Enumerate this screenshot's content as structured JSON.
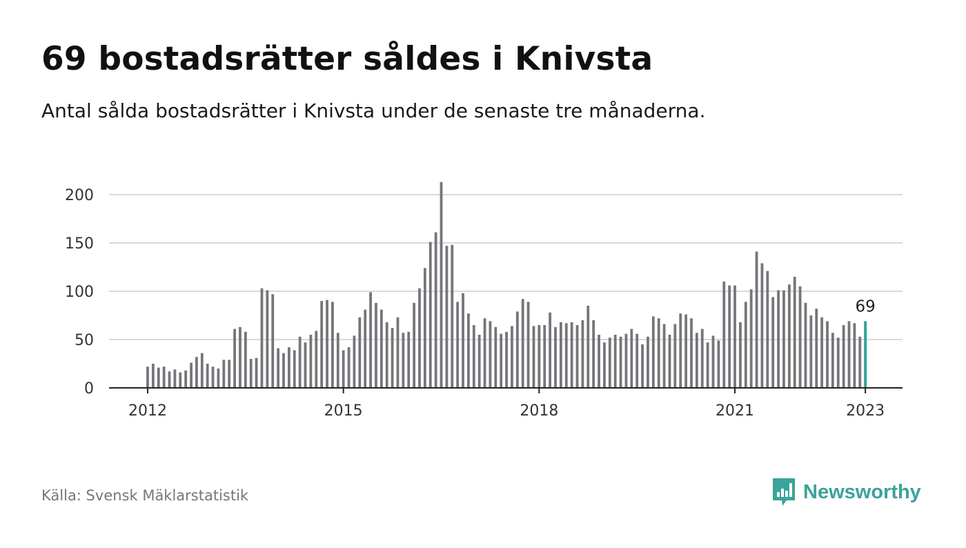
{
  "title": "69 bostadsrätter såldes i Knivsta",
  "subtitle": "Antal sålda bostadsrätter i Knivsta under de senaste tre månaderna.",
  "source": "Källa: Svensk Mäklarstatistik",
  "brand": {
    "name": "Newsworthy",
    "logo_icon": "newsworthy-logo-icon",
    "color": "#3aa39a"
  },
  "colors": {
    "bar": "#75757a",
    "highlight": "#2ea59a",
    "grid": "#d9d9d9",
    "axis": "#222222"
  },
  "chart_data": {
    "type": "bar",
    "x_start": "2012-01",
    "x_step": "month",
    "values": [
      22,
      25,
      21,
      22,
      17,
      19,
      16,
      18,
      26,
      32,
      36,
      25,
      22,
      20,
      29,
      29,
      61,
      63,
      58,
      30,
      31,
      103,
      101,
      97,
      41,
      36,
      42,
      39,
      53,
      47,
      55,
      59,
      90,
      91,
      89,
      57,
      39,
      42,
      54,
      73,
      81,
      99,
      88,
      81,
      68,
      62,
      73,
      57,
      58,
      88,
      103,
      124,
      151,
      161,
      213,
      147,
      148,
      89,
      98,
      77,
      65,
      55,
      72,
      69,
      63,
      56,
      58,
      64,
      79,
      92,
      89,
      64,
      65,
      65,
      78,
      63,
      68,
      67,
      68,
      65,
      70,
      85,
      70,
      55,
      47,
      52,
      55,
      53,
      56,
      61,
      56,
      45,
      53,
      74,
      72,
      66,
      55,
      66,
      77,
      76,
      72,
      57,
      61,
      47,
      54,
      49,
      110,
      106,
      106,
      68,
      89,
      102,
      141,
      129,
      121,
      94,
      101,
      101,
      107,
      115,
      105,
      88,
      75,
      82,
      73,
      69,
      57,
      52,
      65,
      69,
      67,
      53,
      69
    ],
    "x_ticks": [
      "2012",
      "2015",
      "2018",
      "2021",
      "2023"
    ],
    "x_tick_dates": [
      "2012-01",
      "2015-01",
      "2018-01",
      "2021-01",
      "2023-01"
    ],
    "y_ticks": [
      0,
      50,
      100,
      150,
      200
    ],
    "ylim": [
      0,
      220
    ],
    "grid": true,
    "highlight": {
      "date": "2023-01",
      "label": "69"
    }
  }
}
